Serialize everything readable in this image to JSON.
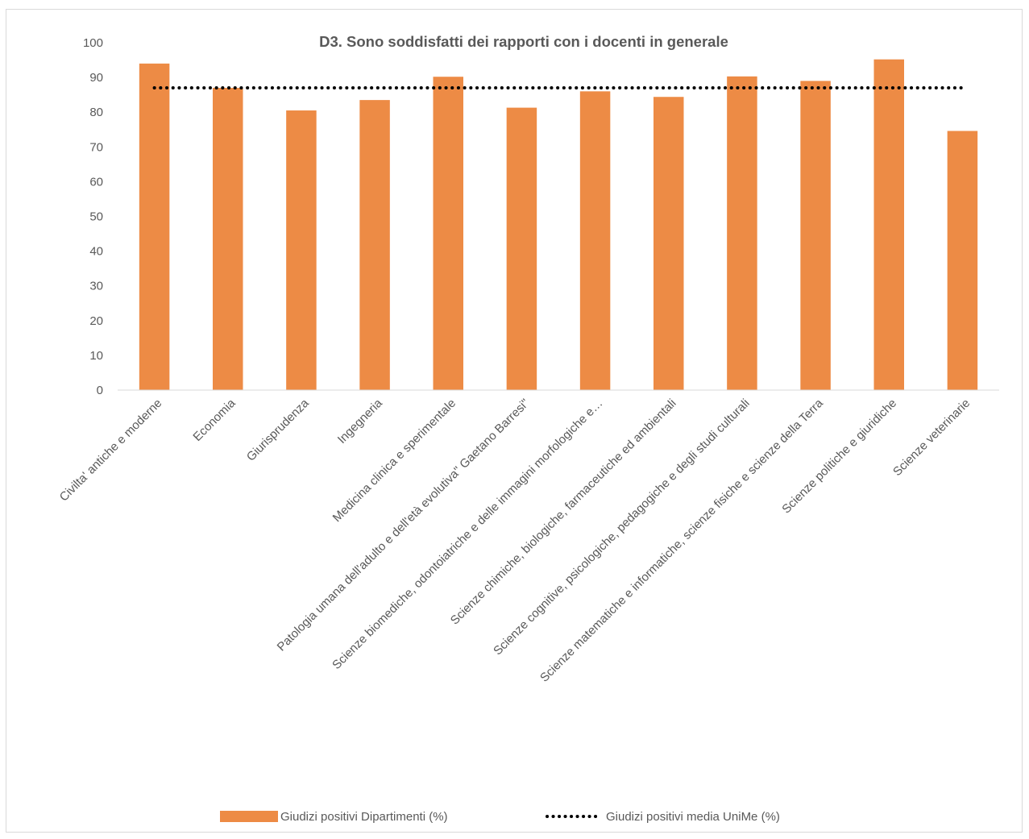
{
  "chart_data": {
    "type": "bar",
    "title": "D3. Sono soddisfatti dei rapporti con i docenti in generale",
    "xlabel": "",
    "ylabel": "",
    "ylim": [
      0,
      100
    ],
    "yticks": [
      0,
      10,
      20,
      30,
      40,
      50,
      60,
      70,
      80,
      90,
      100
    ],
    "grid": false,
    "legend_position": "bottom",
    "categories": [
      "Civilta' antiche e moderne",
      "Economia",
      "Giurisprudenza",
      "Ingegneria",
      "Medicina clinica e sperimentale",
      "Patologia umana dell'adulto e dell'età evolutiva\" Gaetano Barresi\"",
      "Scienze biomediche, odontoiatriche e delle immagini morfologiche e…",
      "Scienze chimiche, biologiche, farmaceutiche ed ambientali",
      "Scienze cognitive, psicologiche, pedagogiche e degli studi culturali",
      "Scienze matematiche e informatiche, scienze fisiche e scienze della Terra",
      "Scienze politiche e giuridiche",
      "Scienze veterinarie"
    ],
    "series": [
      {
        "name": "Giudizi positivi Dipartimenti (%)",
        "type": "bar",
        "color": "#ED8B45",
        "values": [
          94,
          87,
          80.5,
          83.5,
          90.2,
          81.3,
          86,
          84.4,
          90.3,
          89,
          95.2,
          74.6
        ]
      },
      {
        "name": "Giudizi positivi media UniMe (%)",
        "type": "line",
        "style": "dotted",
        "color": "#000000",
        "values": [
          87,
          87,
          87,
          87,
          87,
          87,
          87,
          87,
          87,
          87,
          87,
          87
        ]
      }
    ]
  }
}
